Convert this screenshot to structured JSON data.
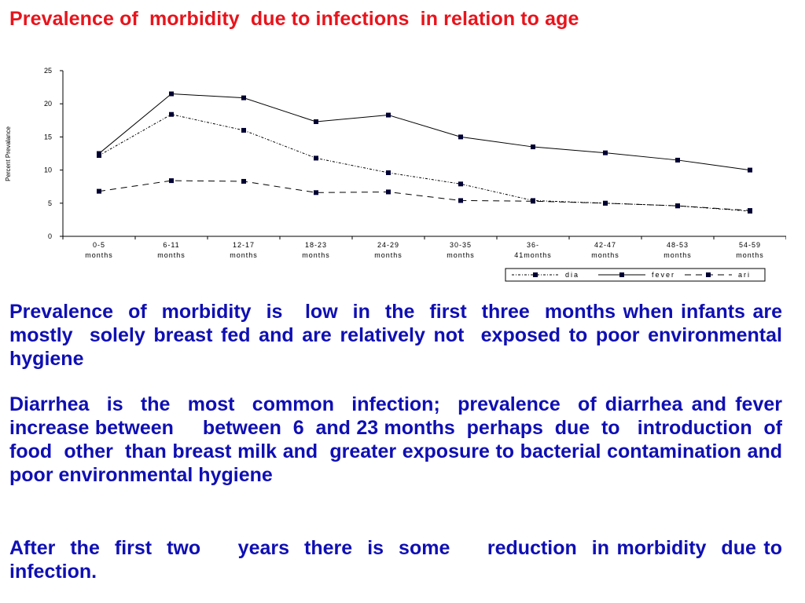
{
  "slide": {
    "title": "Prevalence of  morbidity  due to infections  in relation to age",
    "paragraphs": [
      "Prevalence  of  morbidity  is   low  in  the  first  three  months when infants are mostly  solely breast fed and are relatively not  exposed to poor environmental  hygiene",
      "Diarrhea  is  the  most  common  infection;  prevalence  of diarrhea and fever increase between     between  6  and 23 months  perhaps  due  to   introduction  of  food  other  than breast milk and  greater exposure to bacterial contamination and poor environmental hygiene",
      "After  the  first  two     years  there  is  some     reduction  in morbidity  due to infection."
    ]
  },
  "chart_data": {
    "type": "line",
    "ylabel": "Percent Prevalance",
    "xlabel": "",
    "ylim": [
      0,
      25
    ],
    "yticks": [
      "0",
      "5",
      "10",
      "15",
      "20",
      "25"
    ],
    "categories": [
      [
        "0-5",
        "months"
      ],
      [
        "6-11",
        "months"
      ],
      [
        "12-17",
        "months"
      ],
      [
        "18-23",
        "months"
      ],
      [
        "24-29",
        "months"
      ],
      [
        "30-35",
        "months"
      ],
      [
        "36-",
        "41months"
      ],
      [
        "42-47",
        "months"
      ],
      [
        "48-53",
        "months"
      ],
      [
        "54-59",
        "months"
      ]
    ],
    "series": [
      {
        "name": "dia",
        "style": "dashdot-fine",
        "values": [
          12.2,
          18.4,
          16.0,
          11.8,
          9.6,
          7.9,
          5.4,
          5.0,
          4.6,
          3.8
        ]
      },
      {
        "name": "fever",
        "style": "solid",
        "values": [
          12.5,
          21.5,
          20.9,
          17.3,
          18.3,
          15.0,
          13.5,
          12.6,
          11.5,
          10.0
        ]
      },
      {
        "name": "ari",
        "style": "dashed",
        "values": [
          6.8,
          8.4,
          8.3,
          6.6,
          6.7,
          5.4,
          5.3,
          5.0,
          4.6,
          3.9
        ]
      }
    ],
    "legend_position": "bottom-right",
    "grid": false,
    "colors": {
      "line": "#000000",
      "marker": "#000033"
    }
  }
}
